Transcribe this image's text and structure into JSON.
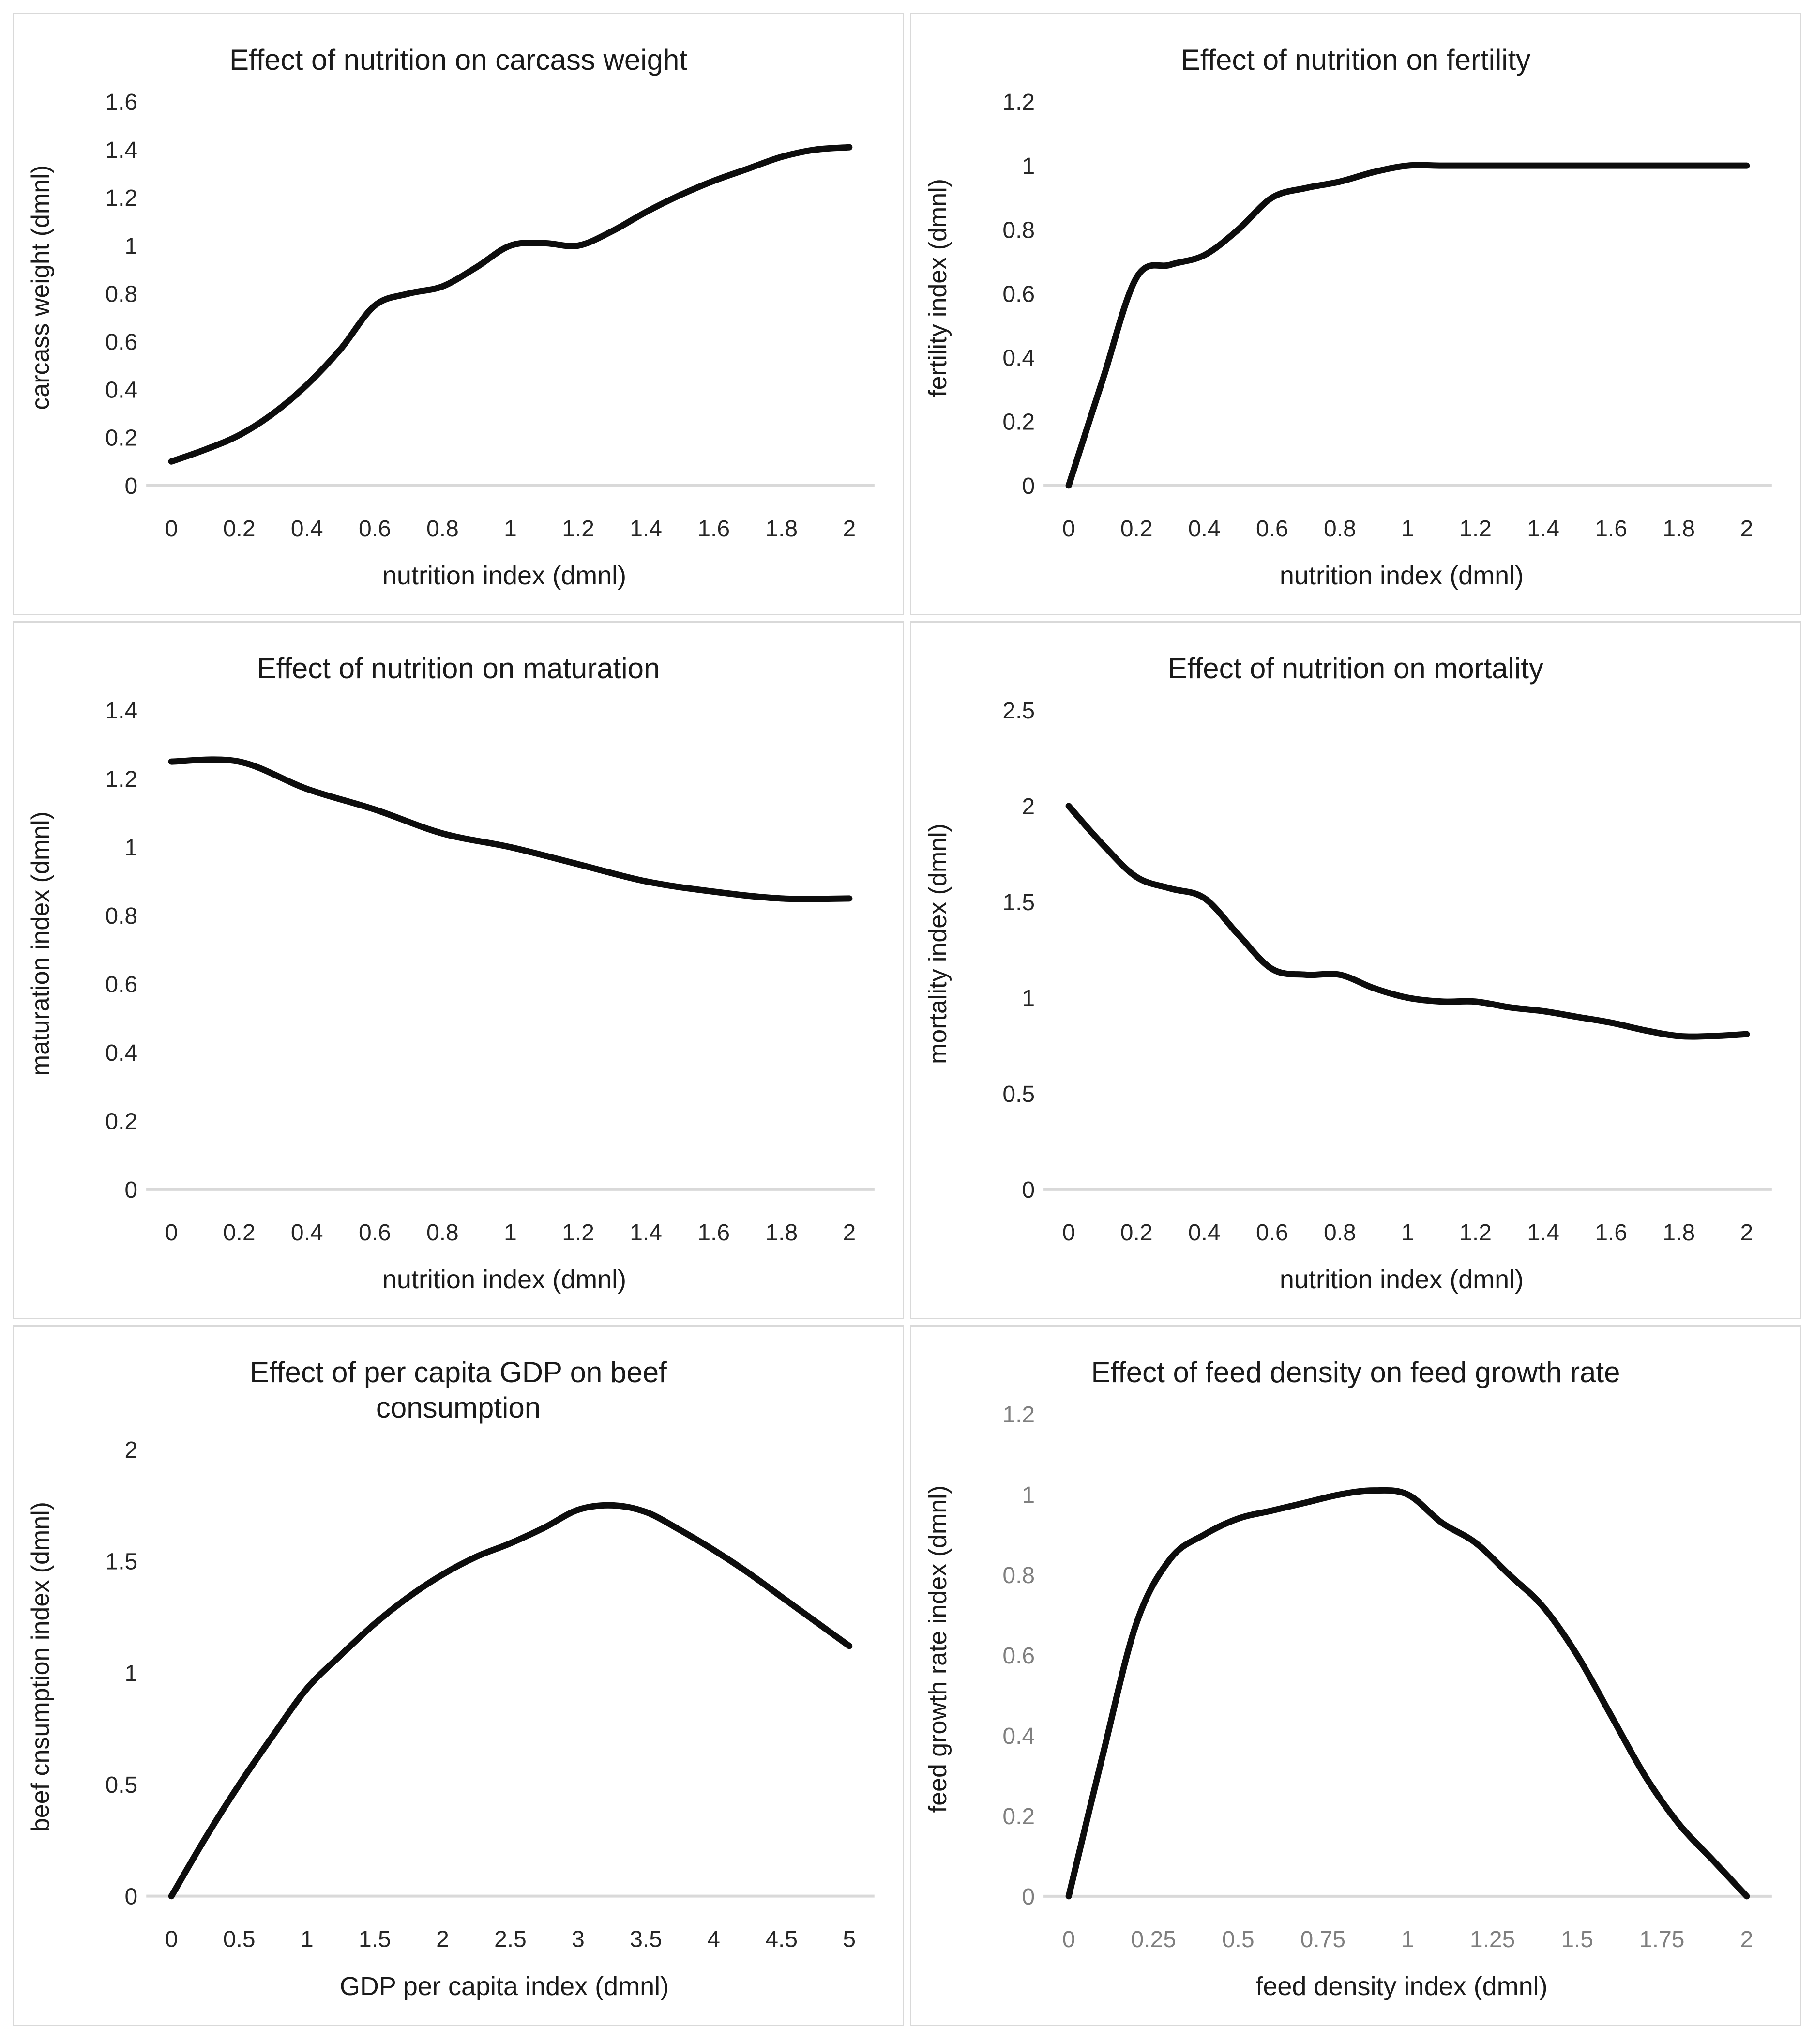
{
  "page": {
    "background": "#ffffff",
    "panel_border_color": "#d9d9d9",
    "baseline_color": "#d9d9d9",
    "curve_color": "#0d0d0d"
  },
  "chart_data": [
    {
      "type": "line",
      "title": "Effect of nutrition on carcass weight",
      "xlabel": "nutrition index (dmnl)",
      "ylabel": "carcass weight (dmnl)",
      "x": [
        0,
        0.1,
        0.2,
        0.3,
        0.4,
        0.5,
        0.6,
        0.7,
        0.8,
        0.9,
        1,
        1.1,
        1.2,
        1.3,
        1.4,
        1.5,
        1.6,
        1.7,
        1.8,
        1.9,
        2
      ],
      "y": [
        0.1,
        0.15,
        0.21,
        0.3,
        0.42,
        0.57,
        0.75,
        0.8,
        0.83,
        0.91,
        1.0,
        1.01,
        1.0,
        1.06,
        1.14,
        1.21,
        1.27,
        1.32,
        1.37,
        1.4,
        1.41
      ],
      "xlim": [
        0,
        2
      ],
      "ylim": [
        0,
        1.6
      ],
      "xticks": [
        "0",
        "0.2",
        "0.4",
        "0.6",
        "0.8",
        "1",
        "1.2",
        "1.4",
        "1.6",
        "1.8",
        "2"
      ],
      "yticks": [
        "0",
        "0.2",
        "0.4",
        "0.6",
        "0.8",
        "1",
        "1.2",
        "1.4",
        "1.6"
      ],
      "grid": false,
      "legend": "none",
      "line_color": "#0d0d0d",
      "tick_color": "#262626"
    },
    {
      "type": "line",
      "title": "Effect of nutrition on fertility",
      "xlabel": "nutrition index (dmnl)",
      "ylabel": "fertility index (dmnl)",
      "x": [
        0,
        0.1,
        0.2,
        0.3,
        0.4,
        0.5,
        0.6,
        0.7,
        0.8,
        0.9,
        1,
        1.1,
        1.2,
        1.3,
        1.4,
        1.5,
        1.6,
        1.7,
        1.8,
        1.9,
        2
      ],
      "y": [
        0.0,
        0.33,
        0.65,
        0.69,
        0.72,
        0.8,
        0.9,
        0.93,
        0.95,
        0.98,
        1.0,
        1.0,
        1.0,
        1.0,
        1.0,
        1.0,
        1.0,
        1.0,
        1.0,
        1.0,
        1.0
      ],
      "xlim": [
        0,
        2
      ],
      "ylim": [
        0,
        1.2
      ],
      "xticks": [
        "0",
        "0.2",
        "0.4",
        "0.6",
        "0.8",
        "1",
        "1.2",
        "1.4",
        "1.6",
        "1.8",
        "2"
      ],
      "yticks": [
        "0",
        "0.2",
        "0.4",
        "0.6",
        "0.8",
        "1",
        "1.2"
      ],
      "grid": false,
      "legend": "none",
      "line_color": "#0d0d0d",
      "tick_color": "#262626"
    },
    {
      "type": "line",
      "title": "Effect of nutrition on maturation",
      "xlabel": "nutrition index (dmnl)",
      "ylabel": "maturation index (dmnl)",
      "x": [
        0,
        0.2,
        0.4,
        0.6,
        0.8,
        1,
        1.2,
        1.4,
        1.6,
        1.8,
        2
      ],
      "y": [
        1.25,
        1.25,
        1.17,
        1.11,
        1.04,
        1.0,
        0.95,
        0.9,
        0.87,
        0.85,
        0.85
      ],
      "xlim": [
        0,
        2
      ],
      "ylim": [
        0,
        1.4
      ],
      "xticks": [
        "0",
        "0.2",
        "0.4",
        "0.6",
        "0.8",
        "1",
        "1.2",
        "1.4",
        "1.6",
        "1.8",
        "2"
      ],
      "yticks": [
        "0",
        "0.2",
        "0.4",
        "0.6",
        "0.8",
        "1",
        "1.2",
        "1.4"
      ],
      "grid": false,
      "legend": "none",
      "line_color": "#0d0d0d",
      "tick_color": "#262626"
    },
    {
      "type": "line",
      "title": "Effect of nutrition on mortality",
      "xlabel": "nutrition index (dmnl)",
      "ylabel": "mortality index (dmnl)",
      "x": [
        0,
        0.1,
        0.2,
        0.3,
        0.4,
        0.5,
        0.6,
        0.7,
        0.8,
        0.9,
        1,
        1.1,
        1.2,
        1.3,
        1.4,
        1.5,
        1.6,
        1.7,
        1.8,
        1.9,
        2
      ],
      "y": [
        2.0,
        1.8,
        1.63,
        1.57,
        1.52,
        1.33,
        1.15,
        1.12,
        1.12,
        1.05,
        1.0,
        0.98,
        0.98,
        0.95,
        0.93,
        0.9,
        0.87,
        0.83,
        0.8,
        0.8,
        0.81
      ],
      "xlim": [
        0,
        2
      ],
      "ylim": [
        0,
        2.5
      ],
      "xticks": [
        "0",
        "0.2",
        "0.4",
        "0.6",
        "0.8",
        "1",
        "1.2",
        "1.4",
        "1.6",
        "1.8",
        "2"
      ],
      "yticks": [
        "0",
        "0.5",
        "1",
        "1.5",
        "2",
        "2.5"
      ],
      "grid": false,
      "legend": "none",
      "line_color": "#0d0d0d",
      "tick_color": "#262626"
    },
    {
      "type": "line",
      "title": "Effect of per capita GDP on beef consumption",
      "xlabel": "GDP per capita index (dmnl)",
      "ylabel": "beef  cnsumption index (dmnl)",
      "x": [
        0,
        0.25,
        0.5,
        0.75,
        1,
        1.25,
        1.5,
        1.75,
        2,
        2.25,
        2.5,
        2.75,
        3,
        3.25,
        3.5,
        3.75,
        4,
        4.25,
        4.5,
        4.75,
        5
      ],
      "y": [
        0.0,
        0.26,
        0.5,
        0.72,
        0.93,
        1.08,
        1.22,
        1.34,
        1.44,
        1.52,
        1.58,
        1.65,
        1.73,
        1.75,
        1.72,
        1.64,
        1.55,
        1.45,
        1.34,
        1.23,
        1.12
      ],
      "xlim": [
        0,
        5
      ],
      "ylim": [
        0,
        2
      ],
      "xticks": [
        "0",
        "0.5",
        "1",
        "1.5",
        "2",
        "2.5",
        "3",
        "3.5",
        "4",
        "4.5",
        "5"
      ],
      "yticks": [
        "0",
        "0.5",
        "1",
        "1.5",
        "2"
      ],
      "grid": false,
      "legend": "none",
      "line_color": "#0d0d0d",
      "tick_color": "#262626"
    },
    {
      "type": "line",
      "title": "Effect of feed density on feed growth rate",
      "xlabel": "feed density index (dmnl)",
      "ylabel": "feed growth rate index (dmnl)",
      "x": [
        0,
        0.1,
        0.2,
        0.3,
        0.4,
        0.5,
        0.6,
        0.7,
        0.8,
        0.9,
        1,
        1.1,
        1.2,
        1.3,
        1.4,
        1.5,
        1.6,
        1.7,
        1.8,
        1.9,
        2
      ],
      "y": [
        0.0,
        0.35,
        0.68,
        0.84,
        0.9,
        0.94,
        0.96,
        0.98,
        1.0,
        1.01,
        1.0,
        0.93,
        0.88,
        0.8,
        0.72,
        0.6,
        0.45,
        0.3,
        0.18,
        0.09,
        0.0
      ],
      "xlim": [
        0,
        2
      ],
      "ylim": [
        0,
        1.2
      ],
      "xticks": [
        "0",
        "0.25",
        "0.5",
        "0.75",
        "1",
        "1.25",
        "1.5",
        "1.75",
        "2"
      ],
      "yticks": [
        "0",
        "0.2",
        "0.4",
        "0.6",
        "0.8",
        "1",
        "1.2"
      ],
      "grid": false,
      "legend": "none",
      "line_color": "#0d0d0d",
      "tick_color": "#7f7f7f"
    }
  ]
}
